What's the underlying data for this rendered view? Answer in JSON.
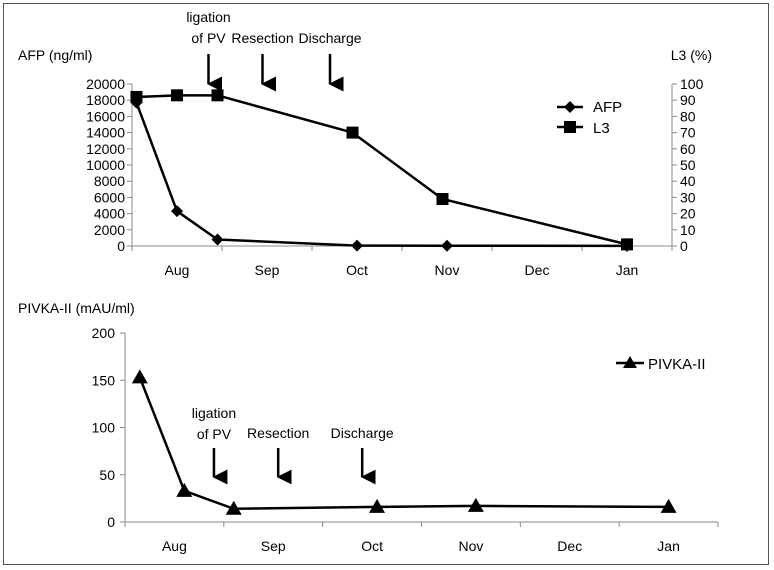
{
  "chart_data": [
    {
      "type": "line",
      "y_label_left": "AFP (ng/ml)",
      "y_label_right": "L3 (%)",
      "y_left_lim": [
        0,
        20000
      ],
      "y_left_ticks": [
        "0",
        "2000",
        "4000",
        "6000",
        "8000",
        "10000",
        "12000",
        "14000",
        "16000",
        "18000",
        "20000"
      ],
      "y_right_lim": [
        0,
        100
      ],
      "y_right_ticks": [
        "0",
        "10",
        "20",
        "30",
        "40",
        "50",
        "60",
        "70",
        "80",
        "90",
        "100"
      ],
      "x_lim": [
        0,
        6
      ],
      "x_ticks": [
        {
          "label": "Aug",
          "x": 0.5
        },
        {
          "label": "Sep",
          "x": 1.5
        },
        {
          "label": "Oct",
          "x": 2.5
        },
        {
          "label": "Nov",
          "x": 3.5
        },
        {
          "label": "Dec",
          "x": 4.5
        },
        {
          "label": "Jan",
          "x": 5.5
        }
      ],
      "series": [
        {
          "name": "AFP",
          "axis": "left",
          "marker": "diamond",
          "x": [
            0.05,
            0.5,
            0.95,
            2.5,
            3.5,
            5.5
          ],
          "y": [
            17700,
            4300,
            800,
            50,
            30,
            20
          ]
        },
        {
          "name": "L3",
          "axis": "right",
          "marker": "square",
          "x": [
            0.05,
            0.5,
            0.95,
            2.45,
            3.45,
            5.5
          ],
          "y": [
            92,
            93,
            93,
            70,
            29,
            1
          ]
        }
      ],
      "annotations": [
        {
          "label_lines": [
            "ligation",
            "of PV"
          ],
          "x": 0.85
        },
        {
          "label_lines": [
            "Resection"
          ],
          "x": 1.45
        },
        {
          "label_lines": [
            "Discharge"
          ],
          "x": 2.2
        }
      ],
      "legend": "right"
    },
    {
      "type": "line",
      "y_label": "PIVKA-II (mAU/ml)",
      "y_lim": [
        0,
        200
      ],
      "y_ticks": [
        "0",
        "50",
        "100",
        "150",
        "200"
      ],
      "x_lim": [
        0,
        6
      ],
      "x_ticks": [
        {
          "label": "Aug",
          "x": 0.5
        },
        {
          "label": "Sep",
          "x": 1.5
        },
        {
          "label": "Oct",
          "x": 2.5
        },
        {
          "label": "Nov",
          "x": 3.5
        },
        {
          "label": "Dec",
          "x": 4.5
        },
        {
          "label": "Jan",
          "x": 5.5
        }
      ],
      "series": [
        {
          "name": "PIVKA-II",
          "marker": "triangle",
          "x": [
            0.15,
            0.6,
            1.1,
            2.55,
            3.55,
            5.5
          ],
          "y": [
            153,
            33,
            14,
            16,
            17,
            16
          ]
        }
      ],
      "annotations": [
        {
          "label_lines": [
            "ligation",
            "of PV"
          ],
          "x": 0.9
        },
        {
          "label_lines": [
            "Resection"
          ],
          "x": 1.55
        },
        {
          "label_lines": [
            "Discharge"
          ],
          "x": 2.4
        }
      ],
      "legend": "top-right"
    }
  ]
}
